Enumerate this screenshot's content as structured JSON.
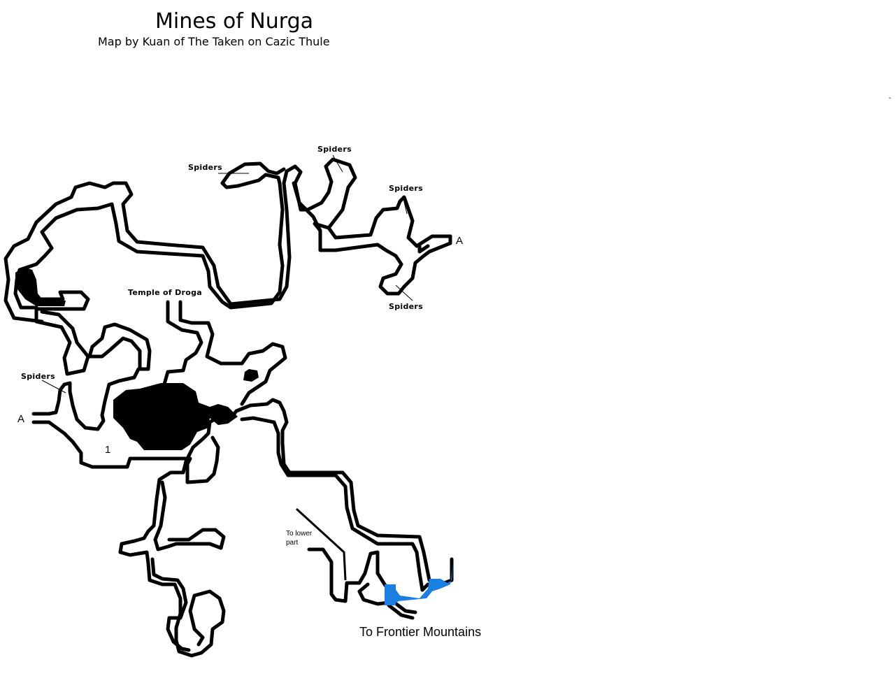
{
  "map": {
    "title": "Mines of Nurga",
    "subtitle": "Map by Kuan of The Taken on Cazic Thule",
    "stray_mark": "-",
    "labels": {
      "spiders_top_left": "Spiders",
      "spiders_top_center": "Spiders",
      "spiders_right_upper": "Spiders",
      "spiders_right_lower": "Spiders",
      "spiders_left": "Spiders",
      "temple": "Temple of Droga",
      "marker_a_right": "A",
      "marker_a_left": "A",
      "marker_1": "1",
      "to_lower_line1": "To lower",
      "to_lower_line2": "part",
      "exit": "To Frontier Mountains"
    },
    "colors": {
      "wall": "#000000",
      "water": "#1a7fe0",
      "background": "#ffffff"
    }
  }
}
